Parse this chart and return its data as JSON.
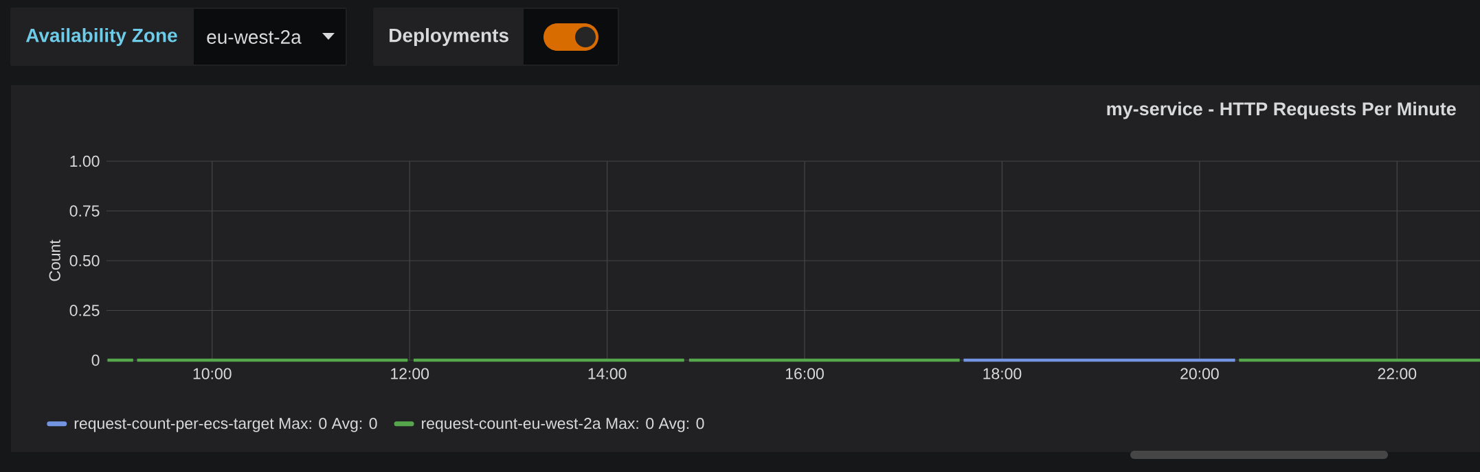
{
  "chart_data": {
    "type": "line",
    "title": "my-service - HTTP Requests Per Minute",
    "ylabel": "Count",
    "annotations": [
      "Availability Zone",
      "eu-west-2a",
      "Deployments"
    ],
    "xlim": [
      8.93,
      22.84
    ],
    "xticks": [
      {
        "value": 10,
        "label": "10:00"
      },
      {
        "value": 12,
        "label": "12:00"
      },
      {
        "value": 14,
        "label": "14:00"
      },
      {
        "value": 16,
        "label": "16:00"
      },
      {
        "value": 18,
        "label": "18:00"
      },
      {
        "value": 20,
        "label": "20:00"
      },
      {
        "value": 22,
        "label": "22:00"
      }
    ],
    "ylim": [
      0,
      1
    ],
    "yticks": [
      0,
      {
        "value": 0.25,
        "label": "0.25"
      },
      {
        "value": 0.5,
        "label": "0.50"
      },
      {
        "value": 0.75,
        "label": "0.75"
      },
      {
        "value": 1,
        "label": "1.00"
      }
    ],
    "grid": true,
    "legend": "bottom left",
    "marker": "none",
    "line_style": "solid",
    "series": [
      {
        "name": "request-count-per-ecs-target  Max: 0  Avg: 0",
        "color": "#7394e0",
        "x": [
          17.61,
          20.36
        ],
        "values": [
          0,
          0
        ]
      },
      {
        "name": "request-count-eu-west-2a  Max: 0  Avg: 0",
        "color": "#56a64b",
        "x": [
          8.94,
          9.2,
          9.22,
          9.24,
          11.98,
          12.01,
          12.04,
          14.78,
          14.8,
          14.83,
          17.57,
          19,
          20.4,
          22.84
        ],
        "values": [
          0,
          0,
          null,
          0,
          0,
          null,
          0,
          0,
          null,
          0,
          0,
          null,
          0,
          0
        ]
      }
    ]
  }
}
